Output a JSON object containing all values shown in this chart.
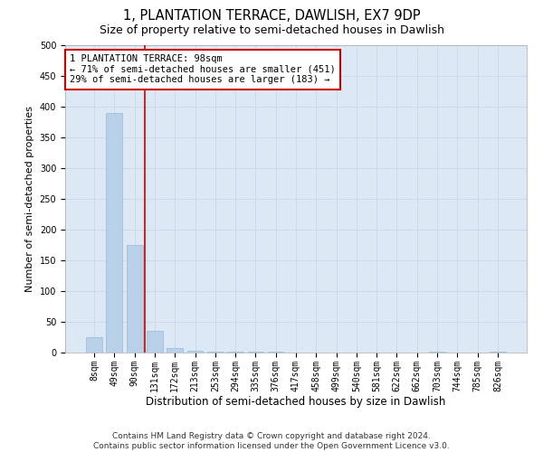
{
  "title": "1, PLANTATION TERRACE, DAWLISH, EX7 9DP",
  "subtitle": "Size of property relative to semi-detached houses in Dawlish",
  "xlabel": "Distribution of semi-detached houses by size in Dawlish",
  "ylabel": "Number of semi-detached properties",
  "categories": [
    "8sqm",
    "49sqm",
    "90sqm",
    "131sqm",
    "172sqm",
    "213sqm",
    "253sqm",
    "294sqm",
    "335sqm",
    "376sqm",
    "417sqm",
    "458sqm",
    "499sqm",
    "540sqm",
    "581sqm",
    "622sqm",
    "662sqm",
    "703sqm",
    "744sqm",
    "785sqm",
    "826sqm"
  ],
  "values": [
    25,
    390,
    175,
    35,
    8,
    3,
    2,
    1,
    2,
    1,
    0,
    0,
    0,
    0,
    0,
    0,
    0,
    2,
    0,
    0,
    2
  ],
  "bar_color": "#b8d0e8",
  "bar_edge_color": "#9ab8d8",
  "annotation_text_line1": "1 PLANTATION TERRACE: 98sqm",
  "annotation_text_line2": "← 71% of semi-detached houses are smaller (451)",
  "annotation_text_line3": "29% of semi-detached houses are larger (183) →",
  "ylim": [
    0,
    500
  ],
  "yticks": [
    0,
    50,
    100,
    150,
    200,
    250,
    300,
    350,
    400,
    450,
    500
  ],
  "grid_color": "#c8d8e8",
  "background_color": "#dce9f5",
  "bar_width": 0.8,
  "footer_line1": "Contains HM Land Registry data © Crown copyright and database right 2024.",
  "footer_line2": "Contains public sector information licensed under the Open Government Licence v3.0.",
  "title_fontsize": 10.5,
  "subtitle_fontsize": 9,
  "xlabel_fontsize": 8.5,
  "ylabel_fontsize": 8,
  "tick_fontsize": 7,
  "annotation_fontsize": 7.5,
  "footer_fontsize": 6.5,
  "property_line_x": 2.5
}
